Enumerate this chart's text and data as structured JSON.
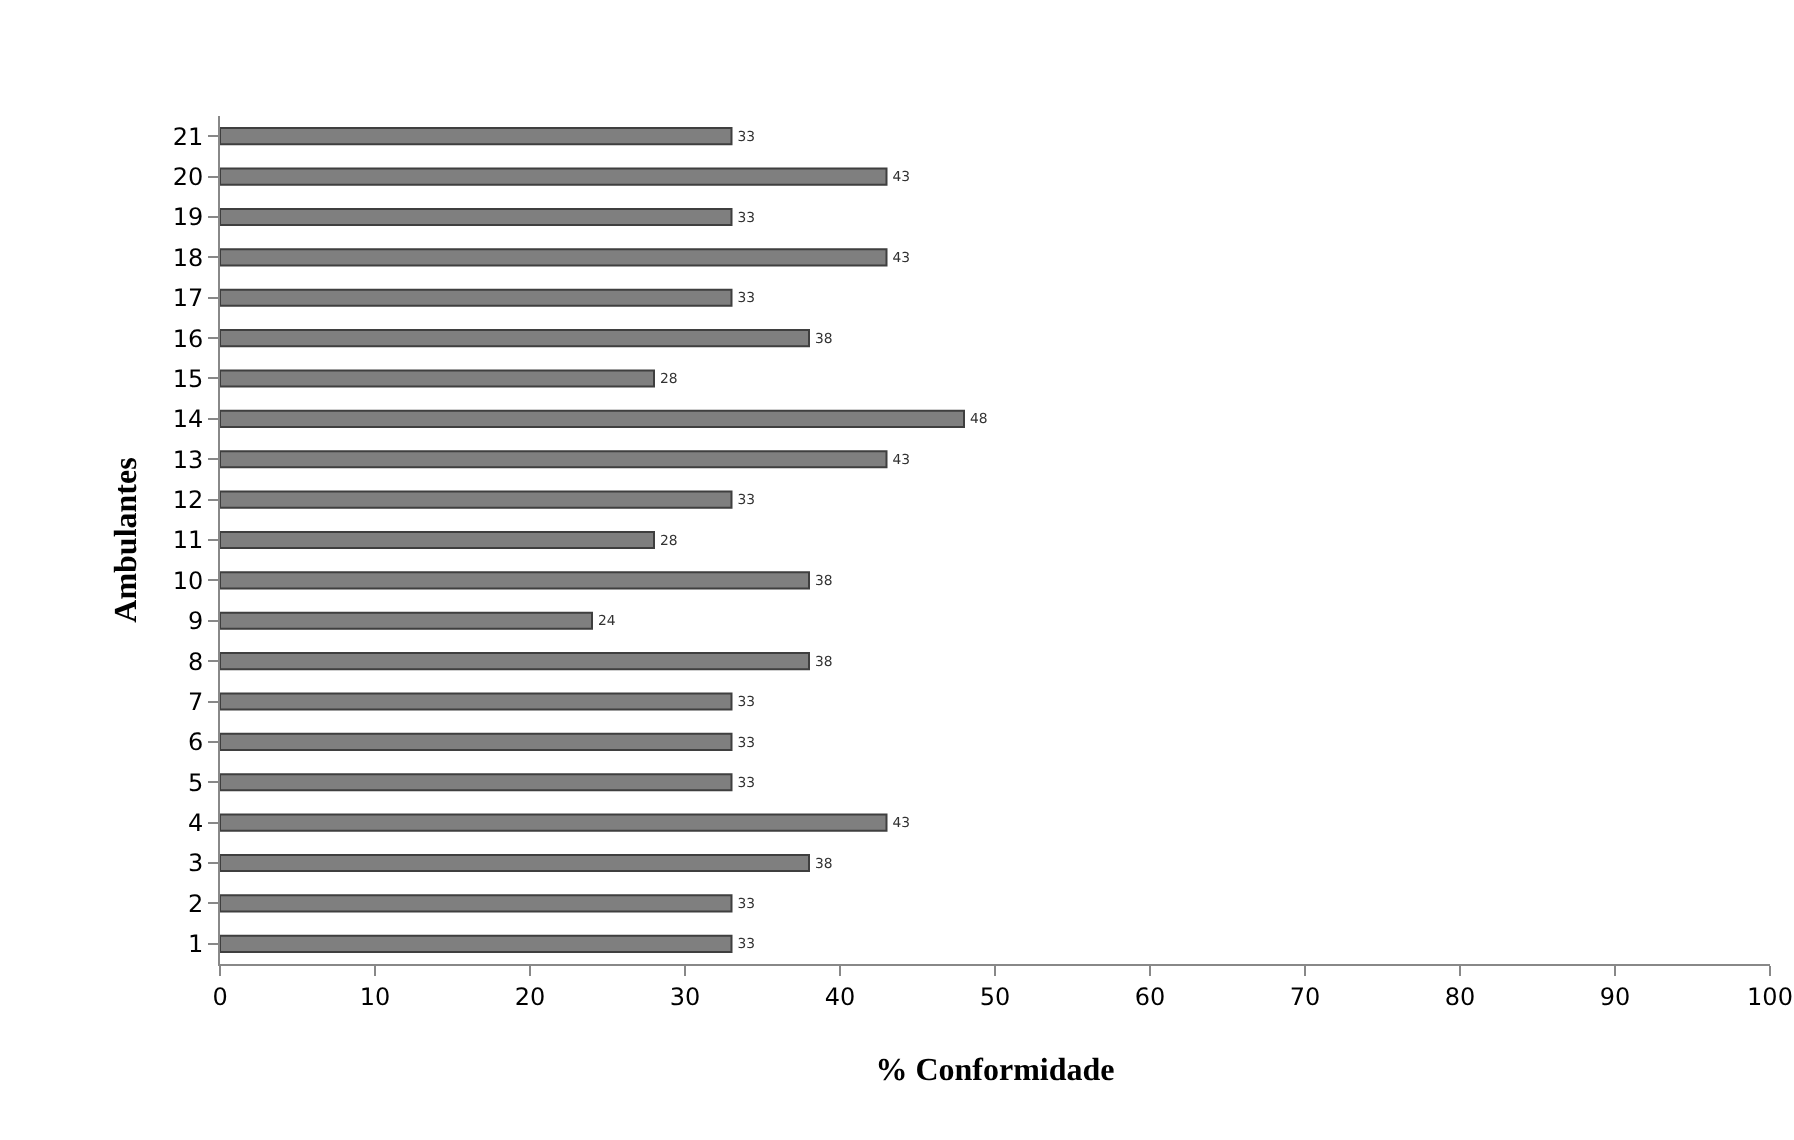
{
  "chart_data": {
    "type": "bar",
    "orientation": "horizontal",
    "xlabel": "% Conformidade",
    "ylabel": "Ambulantes",
    "categories": [
      "21",
      "20",
      "19",
      "18",
      "17",
      "16",
      "15",
      "14",
      "13",
      "12",
      "11",
      "10",
      "9",
      "8",
      "7",
      "6",
      "5",
      "4",
      "3",
      "2",
      "1"
    ],
    "values": [
      33,
      43,
      33,
      43,
      33,
      38,
      28,
      48,
      43,
      33,
      28,
      38,
      24,
      38,
      33,
      33,
      33,
      43,
      38,
      33,
      33
    ],
    "color": "#7f7f7f",
    "xlim": [
      0,
      100
    ],
    "xticks": [
      0,
      10,
      20,
      30,
      40,
      50,
      60,
      70,
      80,
      90,
      100
    ],
    "grid": false,
    "data_labels": true
  }
}
